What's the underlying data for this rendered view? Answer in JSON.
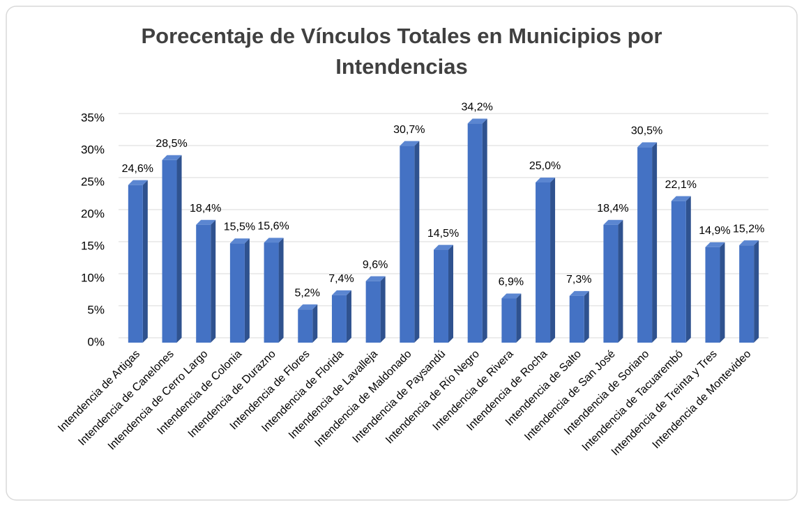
{
  "chart_data": {
    "type": "bar",
    "title": "Porecentaje de Vínculos Totales en Municipios por Intendencias",
    "categories": [
      "Intendencia de Artigas",
      "Intendencia de Canelones",
      "Intendencia de Cerro Largo",
      "Intendencia de Colonia",
      "Intendencia de Durazno",
      "Intendencia de Flores",
      "Intendencia de Florida",
      "Intendencia de Lavalleja",
      "Intendencia de Maldonado",
      "Intendencia de Paysandú",
      "Intendencia de Río Negro",
      "Intendencia de Rivera",
      "Intendencia de Rocha",
      "Intendencia de Salto",
      "Intendencia de San José",
      "Intendencia de Soriano",
      "Intendencia de Tacuarembó",
      "Intendencia de Treinta y Tres",
      "Intendencia de Montevideo"
    ],
    "values": [
      24.6,
      28.5,
      18.4,
      15.5,
      15.6,
      5.2,
      7.4,
      9.6,
      30.7,
      14.5,
      34.2,
      6.9,
      25.0,
      7.3,
      18.4,
      30.5,
      22.1,
      14.9,
      15.2
    ],
    "value_labels": [
      "24,6%",
      "28,5%",
      "18,4%",
      "15,5%",
      "15,6%",
      "5,2%",
      "7,4%",
      "9,6%",
      "30,7%",
      "14,5%",
      "34,2%",
      "6,9%",
      "25,0%",
      "7,3%",
      "18,4%",
      "30,5%",
      "22,1%",
      "14,9%",
      "15,2%"
    ],
    "color": "#4472c4",
    "ylim": [
      0,
      35
    ],
    "yticks": [
      {
        "value": 0,
        "label": "0%"
      },
      {
        "value": 5,
        "label": "5%"
      },
      {
        "value": 10,
        "label": "10%"
      },
      {
        "value": 15,
        "label": "15%"
      },
      {
        "value": 20,
        "label": "20%"
      },
      {
        "value": 25,
        "label": "25%"
      },
      {
        "value": 30,
        "label": "30%"
      },
      {
        "value": 35,
        "label": "35%"
      }
    ],
    "grid": true
  }
}
